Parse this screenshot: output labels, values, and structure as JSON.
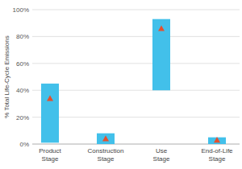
{
  "chart_data": {
    "type": "range",
    "y_label": "% Total Life-Cycle Emissions",
    "categories": [
      "Product Stage",
      "Construction Stage",
      "Use Stage",
      "End-of-Life Stage"
    ],
    "series": [
      {
        "type": "range",
        "color": "#42c0ea",
        "low": [
          1,
          0,
          40,
          0
        ],
        "high": [
          45,
          8,
          93,
          5
        ]
      },
      {
        "type": "scatter",
        "color": "#e4502f",
        "marker": "triangle",
        "values": [
          34,
          4,
          86,
          3
        ]
      }
    ],
    "ylim": [
      0,
      100
    ],
    "yticks": [
      {
        "value": 0,
        "label": "0%"
      },
      {
        "value": 20,
        "label": "20%"
      },
      {
        "value": 40,
        "label": "40%"
      },
      {
        "value": 60,
        "label": "60%"
      },
      {
        "value": 80,
        "label": "80%"
      },
      {
        "value": 100,
        "label": "100%"
      }
    ],
    "grid": true
  }
}
